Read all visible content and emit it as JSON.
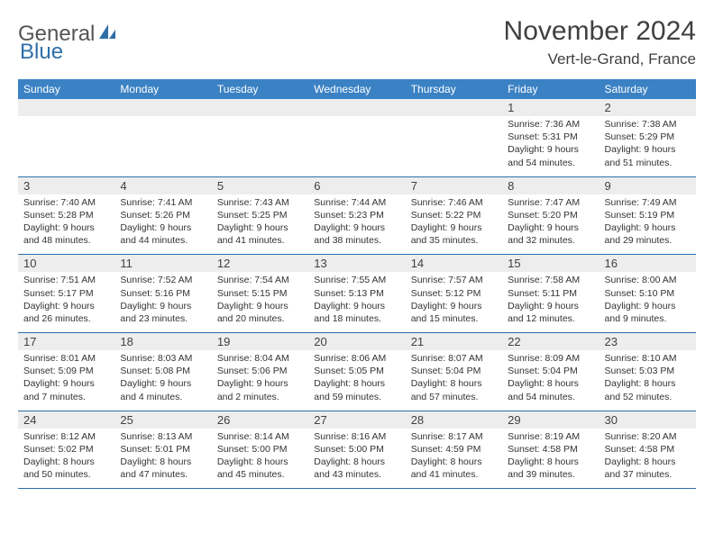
{
  "brand": {
    "general": "General",
    "blue": "Blue"
  },
  "title": "November 2024",
  "location": "Vert-le-Grand, France",
  "colors": {
    "header_bg": "#3b82c4",
    "header_text": "#ffffff",
    "daynum_bg": "#ededed",
    "row_divider": "#2f6fa8",
    "text": "#333333",
    "title_text": "#404040",
    "logo_blue": "#2f6fa8"
  },
  "typography": {
    "title_fontsize": 30,
    "location_fontsize": 17,
    "header_fontsize": 12,
    "daynum_fontsize": 13,
    "body_fontsize": 10.5
  },
  "weekdays": [
    "Sunday",
    "Monday",
    "Tuesday",
    "Wednesday",
    "Thursday",
    "Friday",
    "Saturday"
  ],
  "weeks": [
    [
      {
        "day": "",
        "sunrise": "",
        "sunset": "",
        "daylight": ""
      },
      {
        "day": "",
        "sunrise": "",
        "sunset": "",
        "daylight": ""
      },
      {
        "day": "",
        "sunrise": "",
        "sunset": "",
        "daylight": ""
      },
      {
        "day": "",
        "sunrise": "",
        "sunset": "",
        "daylight": ""
      },
      {
        "day": "",
        "sunrise": "",
        "sunset": "",
        "daylight": ""
      },
      {
        "day": "1",
        "sunrise": "Sunrise: 7:36 AM",
        "sunset": "Sunset: 5:31 PM",
        "daylight": "Daylight: 9 hours and 54 minutes."
      },
      {
        "day": "2",
        "sunrise": "Sunrise: 7:38 AM",
        "sunset": "Sunset: 5:29 PM",
        "daylight": "Daylight: 9 hours and 51 minutes."
      }
    ],
    [
      {
        "day": "3",
        "sunrise": "Sunrise: 7:40 AM",
        "sunset": "Sunset: 5:28 PM",
        "daylight": "Daylight: 9 hours and 48 minutes."
      },
      {
        "day": "4",
        "sunrise": "Sunrise: 7:41 AM",
        "sunset": "Sunset: 5:26 PM",
        "daylight": "Daylight: 9 hours and 44 minutes."
      },
      {
        "day": "5",
        "sunrise": "Sunrise: 7:43 AM",
        "sunset": "Sunset: 5:25 PM",
        "daylight": "Daylight: 9 hours and 41 minutes."
      },
      {
        "day": "6",
        "sunrise": "Sunrise: 7:44 AM",
        "sunset": "Sunset: 5:23 PM",
        "daylight": "Daylight: 9 hours and 38 minutes."
      },
      {
        "day": "7",
        "sunrise": "Sunrise: 7:46 AM",
        "sunset": "Sunset: 5:22 PM",
        "daylight": "Daylight: 9 hours and 35 minutes."
      },
      {
        "day": "8",
        "sunrise": "Sunrise: 7:47 AM",
        "sunset": "Sunset: 5:20 PM",
        "daylight": "Daylight: 9 hours and 32 minutes."
      },
      {
        "day": "9",
        "sunrise": "Sunrise: 7:49 AM",
        "sunset": "Sunset: 5:19 PM",
        "daylight": "Daylight: 9 hours and 29 minutes."
      }
    ],
    [
      {
        "day": "10",
        "sunrise": "Sunrise: 7:51 AM",
        "sunset": "Sunset: 5:17 PM",
        "daylight": "Daylight: 9 hours and 26 minutes."
      },
      {
        "day": "11",
        "sunrise": "Sunrise: 7:52 AM",
        "sunset": "Sunset: 5:16 PM",
        "daylight": "Daylight: 9 hours and 23 minutes."
      },
      {
        "day": "12",
        "sunrise": "Sunrise: 7:54 AM",
        "sunset": "Sunset: 5:15 PM",
        "daylight": "Daylight: 9 hours and 20 minutes."
      },
      {
        "day": "13",
        "sunrise": "Sunrise: 7:55 AM",
        "sunset": "Sunset: 5:13 PM",
        "daylight": "Daylight: 9 hours and 18 minutes."
      },
      {
        "day": "14",
        "sunrise": "Sunrise: 7:57 AM",
        "sunset": "Sunset: 5:12 PM",
        "daylight": "Daylight: 9 hours and 15 minutes."
      },
      {
        "day": "15",
        "sunrise": "Sunrise: 7:58 AM",
        "sunset": "Sunset: 5:11 PM",
        "daylight": "Daylight: 9 hours and 12 minutes."
      },
      {
        "day": "16",
        "sunrise": "Sunrise: 8:00 AM",
        "sunset": "Sunset: 5:10 PM",
        "daylight": "Daylight: 9 hours and 9 minutes."
      }
    ],
    [
      {
        "day": "17",
        "sunrise": "Sunrise: 8:01 AM",
        "sunset": "Sunset: 5:09 PM",
        "daylight": "Daylight: 9 hours and 7 minutes."
      },
      {
        "day": "18",
        "sunrise": "Sunrise: 8:03 AM",
        "sunset": "Sunset: 5:08 PM",
        "daylight": "Daylight: 9 hours and 4 minutes."
      },
      {
        "day": "19",
        "sunrise": "Sunrise: 8:04 AM",
        "sunset": "Sunset: 5:06 PM",
        "daylight": "Daylight: 9 hours and 2 minutes."
      },
      {
        "day": "20",
        "sunrise": "Sunrise: 8:06 AM",
        "sunset": "Sunset: 5:05 PM",
        "daylight": "Daylight: 8 hours and 59 minutes."
      },
      {
        "day": "21",
        "sunrise": "Sunrise: 8:07 AM",
        "sunset": "Sunset: 5:04 PM",
        "daylight": "Daylight: 8 hours and 57 minutes."
      },
      {
        "day": "22",
        "sunrise": "Sunrise: 8:09 AM",
        "sunset": "Sunset: 5:04 PM",
        "daylight": "Daylight: 8 hours and 54 minutes."
      },
      {
        "day": "23",
        "sunrise": "Sunrise: 8:10 AM",
        "sunset": "Sunset: 5:03 PM",
        "daylight": "Daylight: 8 hours and 52 minutes."
      }
    ],
    [
      {
        "day": "24",
        "sunrise": "Sunrise: 8:12 AM",
        "sunset": "Sunset: 5:02 PM",
        "daylight": "Daylight: 8 hours and 50 minutes."
      },
      {
        "day": "25",
        "sunrise": "Sunrise: 8:13 AM",
        "sunset": "Sunset: 5:01 PM",
        "daylight": "Daylight: 8 hours and 47 minutes."
      },
      {
        "day": "26",
        "sunrise": "Sunrise: 8:14 AM",
        "sunset": "Sunset: 5:00 PM",
        "daylight": "Daylight: 8 hours and 45 minutes."
      },
      {
        "day": "27",
        "sunrise": "Sunrise: 8:16 AM",
        "sunset": "Sunset: 5:00 PM",
        "daylight": "Daylight: 8 hours and 43 minutes."
      },
      {
        "day": "28",
        "sunrise": "Sunrise: 8:17 AM",
        "sunset": "Sunset: 4:59 PM",
        "daylight": "Daylight: 8 hours and 41 minutes."
      },
      {
        "day": "29",
        "sunrise": "Sunrise: 8:19 AM",
        "sunset": "Sunset: 4:58 PM",
        "daylight": "Daylight: 8 hours and 39 minutes."
      },
      {
        "day": "30",
        "sunrise": "Sunrise: 8:20 AM",
        "sunset": "Sunset: 4:58 PM",
        "daylight": "Daylight: 8 hours and 37 minutes."
      }
    ]
  ]
}
